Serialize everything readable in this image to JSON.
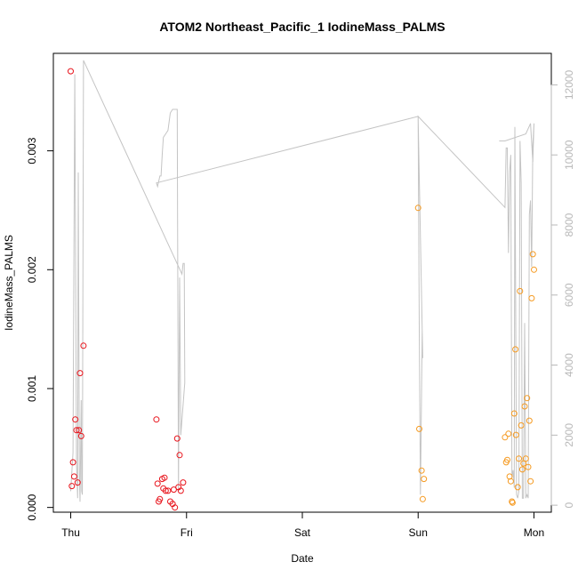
{
  "chart_data": {
    "type": "scatter",
    "title": "ATOM2 Northeast_Pacific_1 IodineMass_PALMS",
    "xlabel": "Date",
    "ylabel": "IodineMass_PALMS",
    "x_ticks": [
      "Thu",
      "Fri",
      "Sat",
      "Sun",
      "Mon"
    ],
    "x_unit": "days since Thu 00:00",
    "xlim": [
      -0.15,
      4.15
    ],
    "ylim": [
      -4e-05,
      0.00382
    ],
    "y_ticks": [
      0.0,
      0.001,
      0.002,
      0.003
    ],
    "y_tick_labels": [
      "0.000",
      "0.001",
      "0.002",
      "0.003"
    ],
    "y2lim": [
      -200,
      12900
    ],
    "y2_ticks": [
      0,
      2000,
      4000,
      6000,
      8000,
      10000,
      12000
    ],
    "y2_tick_labels": [
      "0",
      "2000",
      "4000",
      "6000",
      "8000",
      "10000",
      "12000"
    ],
    "colors": {
      "points_red": "#e8141c",
      "points_orange": "#f59a21",
      "altitude_line": "#c4c4c4",
      "axis": "#000000",
      "right_axis": "#b8b8b8"
    },
    "series": [
      {
        "color": "#e8141c",
        "points": [
          {
            "x": 0.0,
            "y": 0.00367
          },
          {
            "x": 0.01,
            "y": 0.00018
          },
          {
            "x": 0.02,
            "y": 0.00038
          },
          {
            "x": 0.03,
            "y": 0.00026
          },
          {
            "x": 0.04,
            "y": 0.00074
          },
          {
            "x": 0.05,
            "y": 0.00065
          },
          {
            "x": 0.06,
            "y": 0.00021
          },
          {
            "x": 0.07,
            "y": 0.00065
          },
          {
            "x": 0.08,
            "y": 0.00113
          },
          {
            "x": 0.09,
            "y": 0.0006
          },
          {
            "x": 0.11,
            "y": 0.00136
          },
          {
            "x": 0.74,
            "y": 0.00074
          },
          {
            "x": 0.75,
            "y": 0.0002
          },
          {
            "x": 0.76,
            "y": 5e-05
          },
          {
            "x": 0.77,
            "y": 7e-05
          },
          {
            "x": 0.79,
            "y": 0.00024
          },
          {
            "x": 0.8,
            "y": 0.00016
          },
          {
            "x": 0.81,
            "y": 0.00025
          },
          {
            "x": 0.82,
            "y": 0.00014
          },
          {
            "x": 0.84,
            "y": 0.00014
          },
          {
            "x": 0.86,
            "y": 5e-05
          },
          {
            "x": 0.88,
            "y": 3e-05
          },
          {
            "x": 0.89,
            "y": 0.00015
          },
          {
            "x": 0.9,
            "y": 0.0
          },
          {
            "x": 0.92,
            "y": 0.00058
          },
          {
            "x": 0.93,
            "y": 0.00017
          },
          {
            "x": 0.94,
            "y": 0.00044
          },
          {
            "x": 0.95,
            "y": 0.00014
          },
          {
            "x": 0.97,
            "y": 0.00021
          }
        ]
      },
      {
        "color": "#f59a21",
        "points": [
          {
            "x": 3.0,
            "y": 0.00252
          },
          {
            "x": 3.01,
            "y": 0.00066
          },
          {
            "x": 3.03,
            "y": 0.00031
          },
          {
            "x": 3.04,
            "y": 7e-05
          },
          {
            "x": 3.05,
            "y": 0.00024
          },
          {
            "x": 3.75,
            "y": 0.00059
          },
          {
            "x": 3.76,
            "y": 0.00038
          },
          {
            "x": 3.77,
            "y": 0.0004
          },
          {
            "x": 3.78,
            "y": 0.00062
          },
          {
            "x": 3.79,
            "y": 0.00026
          },
          {
            "x": 3.8,
            "y": 0.00022
          },
          {
            "x": 3.81,
            "y": 5e-05
          },
          {
            "x": 3.815,
            "y": 4e-05
          },
          {
            "x": 3.83,
            "y": 0.00079
          },
          {
            "x": 3.84,
            "y": 0.00133
          },
          {
            "x": 3.845,
            "y": 0.00061
          },
          {
            "x": 3.86,
            "y": 0.00017
          },
          {
            "x": 3.87,
            "y": 0.00041
          },
          {
            "x": 3.88,
            "y": 0.00182
          },
          {
            "x": 3.89,
            "y": 0.00069
          },
          {
            "x": 3.9,
            "y": 0.00032
          },
          {
            "x": 3.91,
            "y": 0.00037
          },
          {
            "x": 3.92,
            "y": 0.00085
          },
          {
            "x": 3.93,
            "y": 0.00041
          },
          {
            "x": 3.94,
            "y": 0.00092
          },
          {
            "x": 3.95,
            "y": 0.00034
          },
          {
            "x": 3.96,
            "y": 0.00073
          },
          {
            "x": 3.97,
            "y": 0.00022
          },
          {
            "x": 3.98,
            "y": 0.00176
          },
          {
            "x": 3.99,
            "y": 0.00213
          },
          {
            "x": 4.0,
            "y": 0.002
          }
        ]
      }
    ],
    "altitude_line": [
      [
        0.0,
        400
      ],
      [
        0.02,
        1500
      ],
      [
        0.035,
        12300
      ],
      [
        0.05,
        1200
      ],
      [
        0.06,
        200
      ],
      [
        0.065,
        9500
      ],
      [
        0.075,
        800
      ],
      [
        0.08,
        100
      ],
      [
        0.09,
        3000
      ],
      [
        0.095,
        400
      ],
      [
        0.1,
        300
      ],
      [
        0.11,
        12700
      ],
      [
        0.96,
        6600
      ],
      [
        0.97,
        6900
      ],
      [
        0.98,
        6900
      ],
      [
        0.985,
        3500
      ],
      [
        0.95,
        2000
      ],
      [
        0.94,
        6500
      ],
      [
        0.93,
        400
      ],
      [
        0.92,
        11300
      ],
      [
        0.88,
        11300
      ],
      [
        0.86,
        11200
      ],
      [
        0.84,
        10700
      ],
      [
        0.82,
        10600
      ],
      [
        0.8,
        10500
      ],
      [
        0.79,
        10000
      ],
      [
        0.78,
        9400
      ],
      [
        0.77,
        9400
      ],
      [
        0.75,
        9100
      ],
      [
        0.74,
        9200
      ],
      [
        3.0,
        11100
      ],
      [
        3.01,
        5000
      ],
      [
        3.02,
        300
      ],
      [
        3.035,
        5000
      ],
      [
        3.04,
        4200
      ],
      [
        3.0,
        11100
      ],
      [
        3.75,
        8500
      ],
      [
        3.76,
        10200
      ],
      [
        3.77,
        10200
      ],
      [
        3.78,
        7200
      ],
      [
        3.79,
        9500
      ],
      [
        3.8,
        10000
      ],
      [
        3.81,
        800
      ],
      [
        3.82,
        1000
      ],
      [
        3.83,
        500
      ],
      [
        3.835,
        10800
      ],
      [
        3.85,
        300
      ],
      [
        3.86,
        200
      ],
      [
        3.87,
        400
      ],
      [
        3.88,
        10400
      ],
      [
        3.89,
        9200
      ],
      [
        3.9,
        200
      ],
      [
        3.91,
        200
      ],
      [
        3.92,
        5200
      ],
      [
        3.93,
        200
      ],
      [
        3.94,
        300
      ],
      [
        3.95,
        200
      ],
      [
        3.96,
        8300
      ],
      [
        3.97,
        8700
      ],
      [
        3.98,
        6800
      ],
      [
        3.99,
        10300
      ],
      [
        4.0,
        10900
      ],
      [
        3.99,
        9800
      ],
      [
        3.97,
        10900
      ],
      [
        3.93,
        10600
      ],
      [
        3.75,
        10400
      ],
      [
        3.7,
        10400
      ]
    ]
  }
}
